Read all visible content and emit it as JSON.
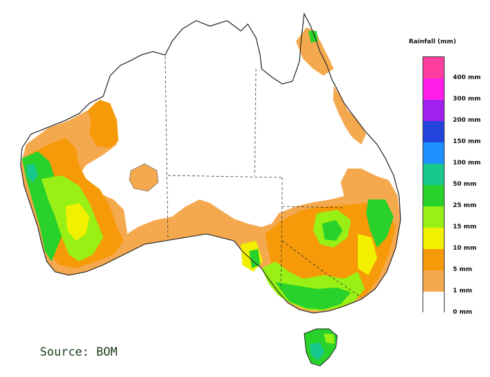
{
  "legend": {
    "title": "Rainfall (mm)",
    "items": [
      {
        "label": "400 mm",
        "color": "#ff3fa0"
      },
      {
        "label": "300 mm",
        "color": "#ff1ee8"
      },
      {
        "label": "200 mm",
        "color": "#a020f0"
      },
      {
        "label": "150 mm",
        "color": "#2244dd"
      },
      {
        "label": "100 mm",
        "color": "#1e90ff"
      },
      {
        "label": "50 mm",
        "color": "#19c88c"
      },
      {
        "label": "25 mm",
        "color": "#28d22a"
      },
      {
        "label": "15 mm",
        "color": "#98f014"
      },
      {
        "label": "10 mm",
        "color": "#f0f000"
      },
      {
        "label": "5 mm",
        "color": "#f79a0a"
      },
      {
        "label": "1 mm",
        "color": "#f5a94f"
      },
      {
        "label": "0 mm",
        "color": "#ffffff"
      }
    ]
  },
  "source": "Source: BOM"
}
